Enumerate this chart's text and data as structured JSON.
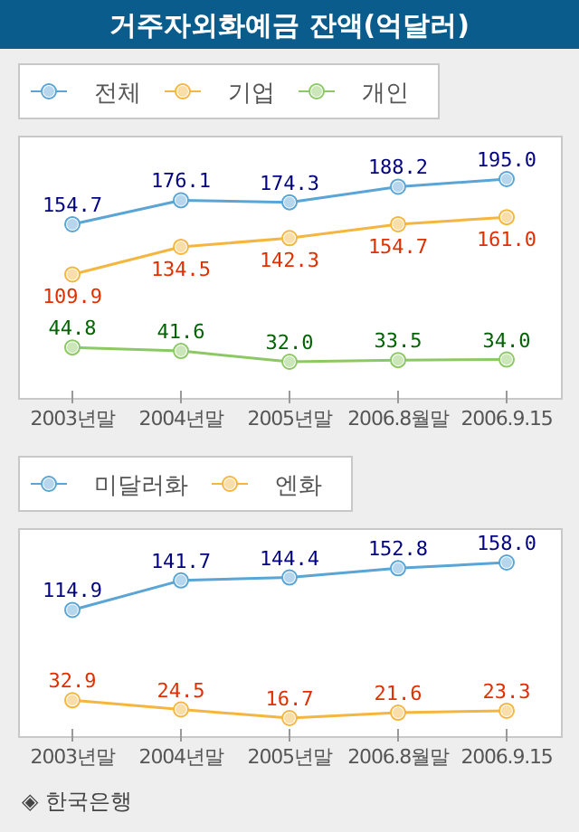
{
  "chart_data": [
    {
      "type": "line",
      "title": "거주자외화예금 잔액(억달러)",
      "categories": [
        "2003년말",
        "2004년말",
        "2005년말",
        "2006.8월말",
        "2006.9.15"
      ],
      "legend": "top left",
      "marker": "circle",
      "grid": false,
      "series": [
        {
          "name": "전체",
          "color": "#5aa5d5",
          "values": [
            154.7,
            176.1,
            174.3,
            188.2,
            195
          ],
          "value_labels": [
            "154.7",
            "176.1",
            "174.3",
            "188.2",
            "195.0"
          ]
        },
        {
          "name": "기업",
          "color": "#f5b640",
          "values": [
            109.9,
            134.5,
            142.3,
            154.7,
            161
          ],
          "value_labels": [
            "109.9",
            "134.5",
            "142.3",
            "154.7",
            "161.0"
          ]
        },
        {
          "name": "개인",
          "color": "#8cc864",
          "values": [
            44.8,
            41.6,
            32,
            33.5,
            34
          ],
          "value_labels": [
            "44.8",
            "41.6",
            "32.0",
            "33.5",
            "34.0"
          ]
        }
      ]
    },
    {
      "type": "line",
      "categories": [
        "2003년말",
        "2004년말",
        "2005년말",
        "2006.8월말",
        "2006.9.15"
      ],
      "legend": "top left",
      "marker": "circle",
      "grid": false,
      "annotations": [
        "◈ 한국은행"
      ],
      "series": [
        {
          "name": "미달러화",
          "color": "#5aa5d5",
          "values": [
            114.9,
            141.7,
            144.4,
            152.8,
            158
          ],
          "value_labels": [
            "114.9",
            "141.7",
            "144.4",
            "152.8",
            "158.0"
          ]
        },
        {
          "name": "엔화",
          "color": "#f5b640",
          "values": [
            32.9,
            24.5,
            16.7,
            21.6,
            23.3
          ],
          "value_labels": [
            "32.9",
            "24.5",
            "16.7",
            "21.6",
            "23.3"
          ]
        }
      ]
    }
  ]
}
